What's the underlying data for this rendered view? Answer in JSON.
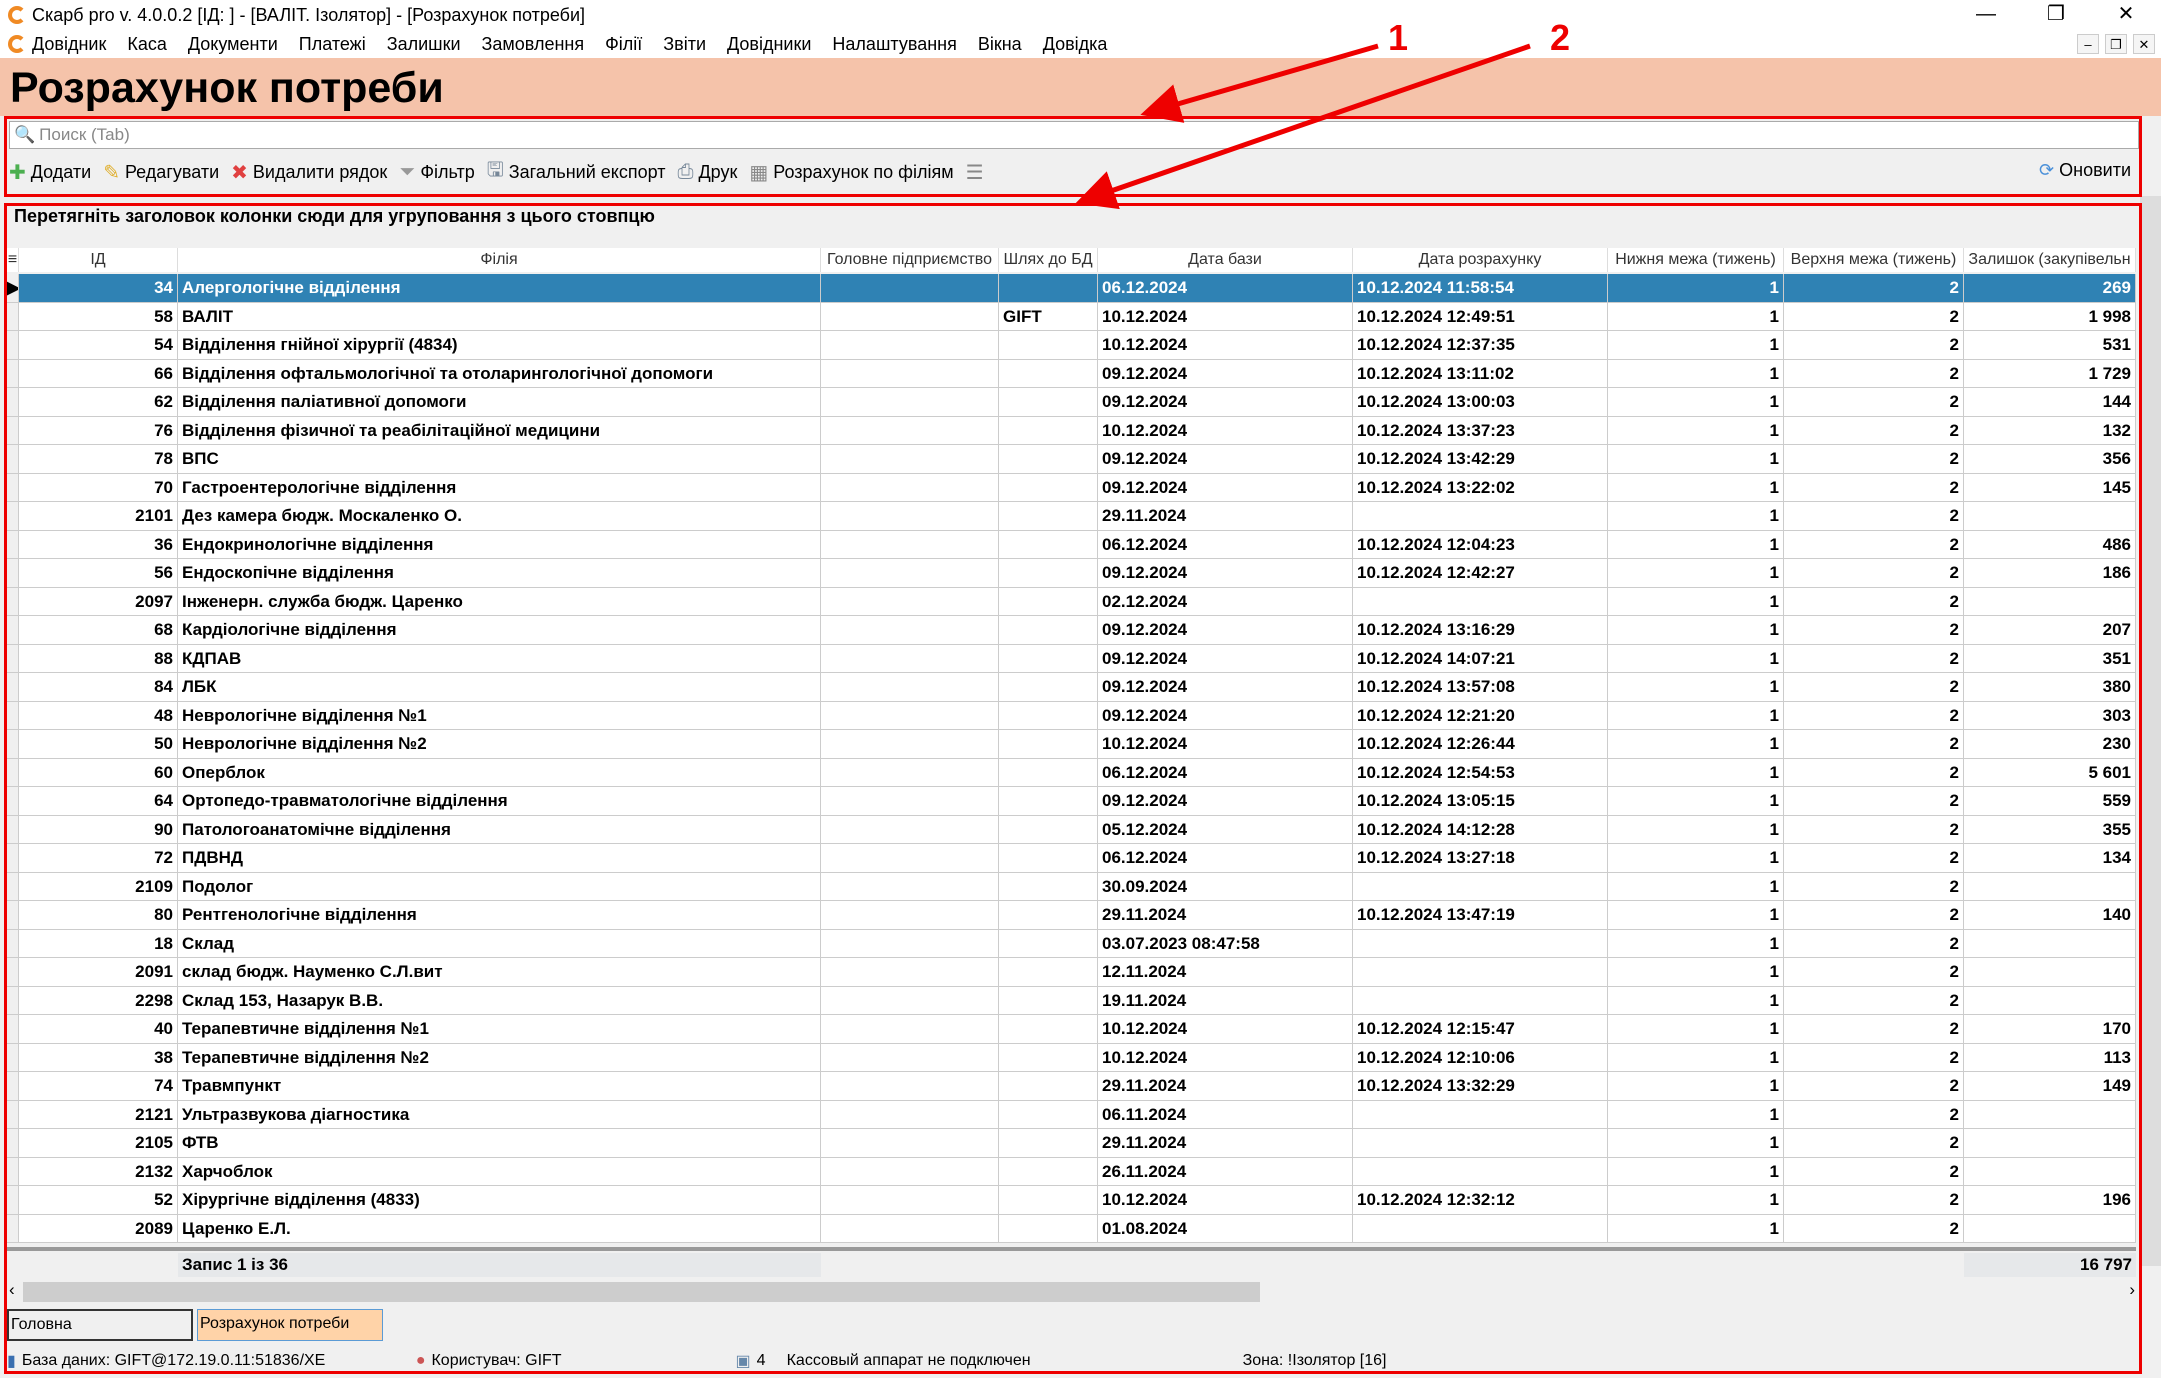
{
  "window": {
    "title": "Скарб pro v. 4.0.0.2 [ІД:      ] - [ВАЛІТ. Ізолятор] - [Розрахунок потреби]",
    "minimize": "—",
    "restore": "❐",
    "close": "✕"
  },
  "menu": [
    "Довідник",
    "Каса",
    "Документи",
    "Платежі",
    "Залишки",
    "Замовлення",
    "Філії",
    "Звіти",
    "Довідники",
    "Налаштування",
    "Вікна",
    "Довідка"
  ],
  "page_title": "Розрахунок потреби",
  "search": {
    "placeholder": "Поиск (Tab)"
  },
  "toolbar": {
    "add": "Додати",
    "edit": "Редагувати",
    "delete": "Видалити рядок",
    "filter": "Фільтр",
    "export": "Загальний експорт",
    "print": "Друк",
    "calc": "Розрахунок по філіям",
    "refresh": "Оновити"
  },
  "annotations": [
    "1",
    "2"
  ],
  "group_panel": "Перетягніть заголовок колонки сюди для угруповання з цього стовпцю",
  "columns": [
    "ІД",
    "Філія",
    "Головне підприємство",
    "Шлях до БД",
    "Дата бази",
    "Дата розрахунку",
    "Нижня межа (тижень)",
    "Верхня межа (тижень)",
    "Залишок (закупівельн"
  ],
  "rows": [
    [
      "34",
      "Алергологічне відділення",
      "",
      "",
      "06.12.2024",
      "10.12.2024 11:58:54",
      "1",
      "2",
      "269"
    ],
    [
      "58",
      "ВАЛІТ",
      "",
      "GIFT",
      "10.12.2024",
      "10.12.2024 12:49:51",
      "1",
      "2",
      "1 998"
    ],
    [
      "54",
      "Відділення гнійної хірургії (4834)",
      "",
      "",
      "10.12.2024",
      "10.12.2024 12:37:35",
      "1",
      "2",
      "531"
    ],
    [
      "66",
      "Відділення офтальмологічної та отоларингологічної допомоги",
      "",
      "",
      "09.12.2024",
      "10.12.2024 13:11:02",
      "1",
      "2",
      "1 729"
    ],
    [
      "62",
      "Відділення паліативної допомоги",
      "",
      "",
      "09.12.2024",
      "10.12.2024 13:00:03",
      "1",
      "2",
      "144"
    ],
    [
      "76",
      "Відділення фізичної та реабілітаційної медицини",
      "",
      "",
      "10.12.2024",
      "10.12.2024 13:37:23",
      "1",
      "2",
      "132"
    ],
    [
      "78",
      "ВПС",
      "",
      "",
      "09.12.2024",
      "10.12.2024 13:42:29",
      "1",
      "2",
      "356"
    ],
    [
      "70",
      "Гастроентерологічне відділення",
      "",
      "",
      "09.12.2024",
      "10.12.2024 13:22:02",
      "1",
      "2",
      "145"
    ],
    [
      "2101",
      "Дез камера бюдж. Москаленко О.",
      "",
      "",
      "29.11.2024",
      "",
      "1",
      "2",
      ""
    ],
    [
      "36",
      "Ендокринологічне відділення",
      "",
      "",
      "06.12.2024",
      "10.12.2024 12:04:23",
      "1",
      "2",
      "486"
    ],
    [
      "56",
      "Ендоскопічне відділення",
      "",
      "",
      "09.12.2024",
      "10.12.2024 12:42:27",
      "1",
      "2",
      "186"
    ],
    [
      "2097",
      "Інженерн. служба бюдж. Царенко",
      "",
      "",
      "02.12.2024",
      "",
      "1",
      "2",
      ""
    ],
    [
      "68",
      "Кардіологічне відділення",
      "",
      "",
      "09.12.2024",
      "10.12.2024 13:16:29",
      "1",
      "2",
      "207"
    ],
    [
      "88",
      "КДПАВ",
      "",
      "",
      "09.12.2024",
      "10.12.2024 14:07:21",
      "1",
      "2",
      "351"
    ],
    [
      "84",
      "ЛБК",
      "",
      "",
      "09.12.2024",
      "10.12.2024 13:57:08",
      "1",
      "2",
      "380"
    ],
    [
      "48",
      "Неврологічне відділення №1",
      "",
      "",
      "09.12.2024",
      "10.12.2024 12:21:20",
      "1",
      "2",
      "303"
    ],
    [
      "50",
      "Неврологічне відділення №2",
      "",
      "",
      "10.12.2024",
      "10.12.2024 12:26:44",
      "1",
      "2",
      "230"
    ],
    [
      "60",
      "Оперблок",
      "",
      "",
      "06.12.2024",
      "10.12.2024 12:54:53",
      "1",
      "2",
      "5 601"
    ],
    [
      "64",
      "Ортопедо-травматологічне відділення",
      "",
      "",
      "09.12.2024",
      "10.12.2024 13:05:15",
      "1",
      "2",
      "559"
    ],
    [
      "90",
      "Патологоанатомічне відділення",
      "",
      "",
      "05.12.2024",
      "10.12.2024 14:12:28",
      "1",
      "2",
      "355"
    ],
    [
      "72",
      "ПДВНД",
      "",
      "",
      "06.12.2024",
      "10.12.2024 13:27:18",
      "1",
      "2",
      "134"
    ],
    [
      "2109",
      "Подолог",
      "",
      "",
      "30.09.2024",
      "",
      "1",
      "2",
      ""
    ],
    [
      "80",
      "Рентгенологічне  відділення",
      "",
      "",
      "29.11.2024",
      "10.12.2024 13:47:19",
      "1",
      "2",
      "140"
    ],
    [
      "18",
      "Склад",
      "",
      "",
      "03.07.2023 08:47:58",
      "",
      "1",
      "2",
      ""
    ],
    [
      "2091",
      "склад  бюдж. Науменко С.Л.вит",
      "",
      "",
      "12.11.2024",
      "",
      "1",
      "2",
      ""
    ],
    [
      "2298",
      "Склад 153, Назарук В.В.",
      "",
      "",
      "19.11.2024",
      "",
      "1",
      "2",
      ""
    ],
    [
      "40",
      "Терапевтичне відділення №1",
      "",
      "",
      "10.12.2024",
      "10.12.2024 12:15:47",
      "1",
      "2",
      "170"
    ],
    [
      "38",
      "Терапевтичне відділення №2",
      "",
      "",
      "10.12.2024",
      "10.12.2024 12:10:06",
      "1",
      "2",
      "113"
    ],
    [
      "74",
      "Травмпункт",
      "",
      "",
      "29.11.2024",
      "10.12.2024 13:32:29",
      "1",
      "2",
      "149"
    ],
    [
      "2121",
      "Ультразвукова діагностика",
      "",
      "",
      "06.11.2024",
      "",
      "1",
      "2",
      ""
    ],
    [
      "2105",
      "ФТВ",
      "",
      "",
      "29.11.2024",
      "",
      "1",
      "2",
      ""
    ],
    [
      "2132",
      "Харчоблок",
      "",
      "",
      "26.11.2024",
      "",
      "1",
      "2",
      ""
    ],
    [
      "52",
      "Хірургічне відділення (4833)",
      "",
      "",
      "10.12.2024",
      "10.12.2024 12:32:12",
      "1",
      "2",
      "196"
    ],
    [
      "2089",
      "Царенко Е.Л.",
      "",
      "",
      "01.08.2024",
      "",
      "1",
      "2",
      ""
    ]
  ],
  "footer": {
    "record": "Запис 1 із 36",
    "total": "16 797"
  },
  "tabs": [
    "Головна",
    "Розрахунок потреби"
  ],
  "status": {
    "db": "База даних: GIFT@172.19.0.11:51836/XE",
    "user": "Користувач: GIFT",
    "count": "4",
    "cash": "Кассовый аппарат не подключен",
    "zone": "Зона: !Ізолятор [16]"
  },
  "colors": {
    "header_bg": "#f5c3aa",
    "selected_row": "#2f82b4",
    "annotation": "#e00000"
  }
}
